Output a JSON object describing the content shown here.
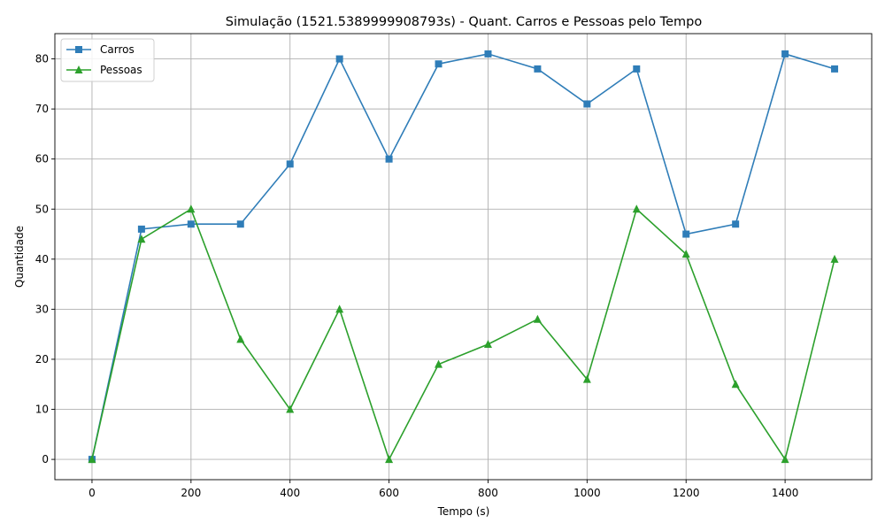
{
  "chart_data": {
    "type": "line",
    "title": "Simulação (1521.5389999908793s) - Quant. Carros e Pessoas pelo Tempo",
    "xlabel": "Tempo (s)",
    "ylabel": "Quantidade",
    "x": [
      0,
      100,
      200,
      300,
      400,
      500,
      600,
      700,
      800,
      900,
      1000,
      1100,
      1200,
      1300,
      1400,
      1500
    ],
    "series": [
      {
        "name": "Carros",
        "color": "#2f7db8",
        "marker": "square",
        "values": [
          0,
          46,
          47,
          47,
          59,
          80,
          60,
          79,
          81,
          78,
          71,
          78,
          45,
          47,
          81,
          78
        ]
      },
      {
        "name": "Pessoas",
        "color": "#2ca02c",
        "marker": "triangle",
        "values": [
          0,
          44,
          50,
          24,
          10,
          30,
          0,
          19,
          23,
          28,
          16,
          50,
          41,
          15,
          0,
          40
        ]
      }
    ],
    "xlim": [
      -75,
      1575
    ],
    "ylim": [
      -4.05,
      85.05
    ],
    "xticks": [
      0,
      200,
      400,
      600,
      800,
      1000,
      1200,
      1400
    ],
    "yticks": [
      0,
      10,
      20,
      30,
      40,
      50,
      60,
      70,
      80
    ],
    "grid": true,
    "legend_position": "upper left"
  }
}
